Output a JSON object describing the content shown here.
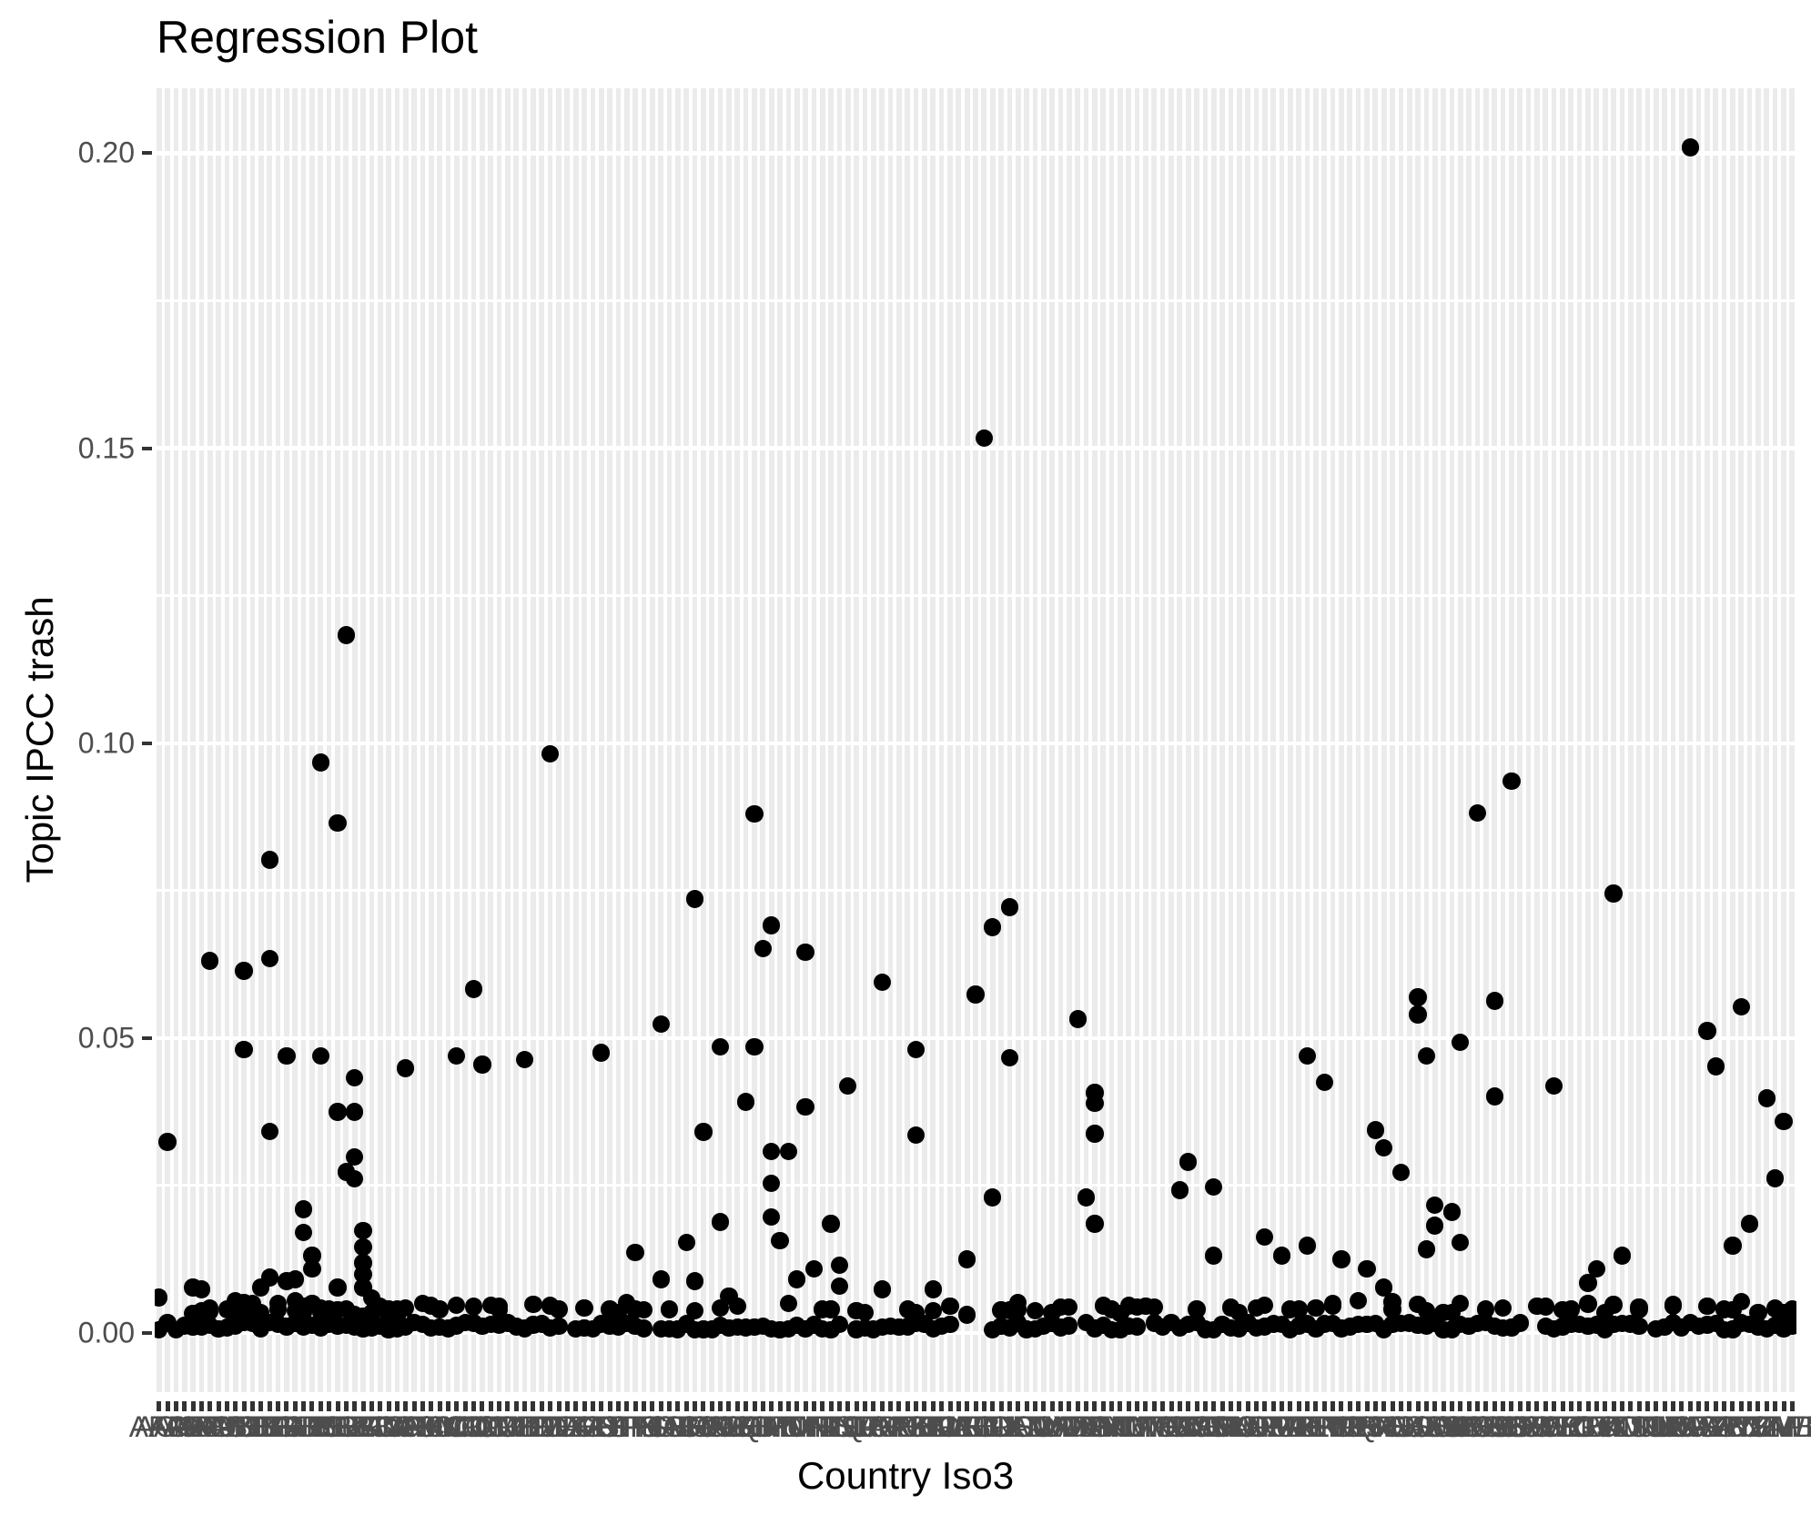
{
  "title": "Regression Plot",
  "colors": {
    "background": "#ffffff",
    "stripe": "#ebebeb",
    "grid": "#ffffff",
    "point": "#000000",
    "tick_text": "#4d4d4d",
    "tick_mark": "#333333",
    "title_text": "#000000"
  },
  "chart_data": {
    "type": "scatter",
    "title": "Regression Plot",
    "xlabel": "Country Iso3",
    "ylabel": "Topic IPCC trash",
    "ylim": [
      -0.0105,
      0.211
    ],
    "y_major_ticks": [
      "0.00",
      "0.05",
      "0.10",
      "0.15",
      "0.20"
    ],
    "y_major_values": [
      0.0,
      0.05,
      0.1,
      0.15,
      0.2
    ],
    "y_minor_values": [
      0.025,
      0.075,
      0.125,
      0.175
    ],
    "grid": "vertical category stripes + white horizontal gridlines",
    "legend": "none",
    "categories": [
      "AFG",
      "AGO",
      "ALB",
      "AND",
      "ARE",
      "ARG",
      "ARM",
      "ATG",
      "AUS",
      "AUT",
      "AZE",
      "BDI",
      "BEL",
      "BEN",
      "BFA",
      "BGD",
      "BGR",
      "BHR",
      "BHS",
      "BIH",
      "BLR",
      "BLZ",
      "BOL",
      "BRA",
      "BRB",
      "BRN",
      "BTN",
      "BWA",
      "CAF",
      "CAN",
      "CHE",
      "CHL",
      "CHN",
      "CIV",
      "CMR",
      "COD",
      "COG",
      "COL",
      "COM",
      "CPV",
      "CRI",
      "CUB",
      "CYP",
      "CZE",
      "DEU",
      "DJI",
      "DMA",
      "DNK",
      "DOM",
      "DZA",
      "ECU",
      "EGY",
      "ERI",
      "ESP",
      "EST",
      "ETH",
      "FIN",
      "FJI",
      "FRA",
      "FSM",
      "GAB",
      "GBR",
      "GEO",
      "GHA",
      "GIN",
      "GMB",
      "GNB",
      "GNQ",
      "GRC",
      "GRD",
      "GTM",
      "GUY",
      "HND",
      "HRV",
      "HTI",
      "HUN",
      "IDN",
      "IND",
      "IRL",
      "IRN",
      "IRQ",
      "ISL",
      "ISR",
      "ITA",
      "JAM",
      "JOR",
      "JPN",
      "KAZ",
      "KEN",
      "KGZ",
      "KHM",
      "KIR",
      "KNA",
      "KOR",
      "KWT",
      "LAO",
      "LBN",
      "LBR",
      "LBY",
      "LCA",
      "LIE",
      "LKA",
      "LSO",
      "LTU",
      "LUX",
      "LVA",
      "MAR",
      "MDA",
      "MDG",
      "MDV",
      "MEX",
      "MHL",
      "MKD",
      "MLI",
      "MLT",
      "MMR",
      "MNE",
      "MNG",
      "MOZ",
      "MRT",
      "MUS",
      "MWI",
      "MYS",
      "NAM",
      "NER",
      "NGA",
      "NIC",
      "NLD",
      "NOR",
      "NPL",
      "NRU",
      "NZL",
      "OMN",
      "PAK",
      "PAN",
      "PER",
      "PHL",
      "PLW",
      "PNG",
      "POL",
      "PRK",
      "PRT",
      "PRY",
      "PSE",
      "QAT",
      "ROU",
      "RUS",
      "RWA",
      "SAU",
      "SDN",
      "SEN",
      "SGP",
      "SLB",
      "SLE",
      "SLV",
      "SMR",
      "SOM",
      "SRB",
      "SSD",
      "STP",
      "SUR",
      "SVK",
      "SVN",
      "SWE",
      "SWZ",
      "SYC",
      "SYR",
      "TCD",
      "TGO",
      "THA",
      "TJK",
      "TKM",
      "TLS",
      "TON",
      "TTO",
      "TUN",
      "TUR",
      "TUV",
      "TZA",
      "UGA",
      "UKR",
      "URY",
      "USA",
      "UZB",
      "VCT",
      "VEN",
      "VNM",
      "VUT",
      "WSM",
      "YEM",
      "ZAF",
      "ZMB",
      "ZWE"
    ],
    "points": [
      [
        180,
        0.201
      ],
      [
        97,
        0.1517
      ],
      [
        22,
        0.1183
      ],
      [
        46,
        0.0982
      ],
      [
        19,
        0.0967
      ],
      [
        159,
        0.0936
      ],
      [
        155,
        0.0882
      ],
      [
        70,
        0.088
      ],
      [
        21,
        0.0865
      ],
      [
        13,
        0.0802
      ],
      [
        171,
        0.0745
      ],
      [
        63,
        0.0736
      ],
      [
        100,
        0.0722
      ],
      [
        72,
        0.0691
      ],
      [
        98,
        0.0688
      ],
      [
        71,
        0.0652
      ],
      [
        76,
        0.0646
      ],
      [
        13,
        0.0635
      ],
      [
        6,
        0.0631
      ],
      [
        10,
        0.0614
      ],
      [
        85,
        0.0595
      ],
      [
        37,
        0.0583
      ],
      [
        96,
        0.0574
      ],
      [
        148,
        0.0569
      ],
      [
        157,
        0.0563
      ],
      [
        186,
        0.0553
      ],
      [
        148,
        0.054
      ],
      [
        108,
        0.0532
      ],
      [
        59,
        0.0524
      ],
      [
        182,
        0.0512
      ],
      [
        153,
        0.0493
      ],
      [
        66,
        0.0485
      ],
      [
        70,
        0.0485
      ],
      [
        89,
        0.048
      ],
      [
        10,
        0.048
      ],
      [
        135,
        0.047
      ],
      [
        149,
        0.047
      ],
      [
        52,
        0.0475
      ],
      [
        15,
        0.047
      ],
      [
        19,
        0.047
      ],
      [
        35,
        0.047
      ],
      [
        100,
        0.0467
      ],
      [
        43,
        0.0464
      ],
      [
        38,
        0.0455
      ],
      [
        183,
        0.0452
      ],
      [
        29,
        0.0449
      ],
      [
        23,
        0.0433
      ],
      [
        137,
        0.0425
      ],
      [
        81,
        0.0419
      ],
      [
        164,
        0.0419
      ],
      [
        110,
        0.0407
      ],
      [
        157,
        0.0401
      ],
      [
        189,
        0.0398
      ],
      [
        69,
        0.0392
      ],
      [
        110,
        0.0389
      ],
      [
        76,
        0.0383
      ],
      [
        21,
        0.0375
      ],
      [
        23,
        0.0375
      ],
      [
        191,
        0.0359
      ],
      [
        143,
        0.0344
      ],
      [
        13,
        0.0342
      ],
      [
        64,
        0.0341
      ],
      [
        110,
        0.0338
      ],
      [
        89,
        0.0335
      ],
      [
        1,
        0.0324
      ],
      [
        144,
        0.0314
      ],
      [
        72,
        0.0308
      ],
      [
        74,
        0.0308
      ],
      [
        23,
        0.0299
      ],
      [
        121,
        0.029
      ],
      [
        22,
        0.0273
      ],
      [
        146,
        0.0272
      ],
      [
        190,
        0.0262
      ],
      [
        23,
        0.0261
      ],
      [
        72,
        0.0254
      ],
      [
        124,
        0.0248
      ],
      [
        120,
        0.0242
      ],
      [
        98,
        0.023
      ],
      [
        109,
        0.023
      ],
      [
        150,
        0.0217
      ],
      [
        17,
        0.021
      ],
      [
        152,
        0.0205
      ],
      [
        72,
        0.0197
      ],
      [
        66,
        0.0188
      ],
      [
        79,
        0.0185
      ],
      [
        110,
        0.0185
      ],
      [
        187,
        0.0185
      ],
      [
        150,
        0.0182
      ],
      [
        24,
        0.0174
      ],
      [
        17,
        0.017
      ],
      [
        130,
        0.0163
      ],
      [
        73,
        0.0157
      ],
      [
        62,
        0.0154
      ],
      [
        153,
        0.0154
      ],
      [
        135,
        0.0148
      ],
      [
        185,
        0.0148
      ],
      [
        24,
        0.0146
      ],
      [
        149,
        0.0142
      ],
      [
        56,
        0.0137
      ],
      [
        18,
        0.0131
      ],
      [
        124,
        0.0131
      ],
      [
        132,
        0.0131
      ],
      [
        172,
        0.0131
      ],
      [
        95,
        0.0125
      ],
      [
        139,
        0.0125
      ],
      [
        24,
        0.0119
      ],
      [
        80,
        0.0115
      ],
      [
        18,
        0.0109
      ],
      [
        77,
        0.0109
      ],
      [
        142,
        0.0109
      ],
      [
        169,
        0.0109
      ],
      [
        24,
        0.0099
      ],
      [
        13,
        0.0094
      ],
      [
        16,
        0.0091
      ],
      [
        59,
        0.0091
      ],
      [
        75,
        0.0091
      ],
      [
        15,
        0.0088
      ],
      [
        63,
        0.0088
      ],
      [
        168,
        0.0085
      ],
      [
        80,
        0.0079
      ],
      [
        24,
        0.0077
      ],
      [
        21,
        0.0077
      ],
      [
        4,
        0.0077
      ],
      [
        12,
        0.0077
      ],
      [
        144,
        0.0077
      ],
      [
        5,
        0.0074
      ],
      [
        85,
        0.0074
      ],
      [
        91,
        0.0074
      ],
      [
        67,
        0.0062
      ],
      [
        0,
        0.006
      ],
      [
        25,
        0.0059
      ],
      [
        141,
        0.0055
      ],
      [
        9,
        0.0055
      ],
      [
        14,
        0.005
      ],
      [
        148,
        0.0049
      ],
      [
        26,
        0.0045
      ],
      [
        89,
        0.0034
      ],
      [
        95,
        0.0031
      ],
      [
        8,
        0.004
      ],
      [
        11,
        0.004
      ],
      [
        20,
        0.004
      ],
      [
        28,
        0.004
      ],
      [
        31,
        0.005
      ],
      [
        33,
        0.004
      ],
      [
        40,
        0.0045
      ],
      [
        47,
        0.004
      ],
      [
        54,
        0.0035
      ],
      [
        60,
        0.004
      ],
      [
        68,
        0.0045
      ],
      [
        74,
        0.005
      ],
      [
        78,
        0.004
      ],
      [
        83,
        0.0035
      ],
      [
        88,
        0.004
      ],
      [
        93,
        0.0045
      ],
      [
        101,
        0.004
      ],
      [
        105,
        0.0035
      ],
      [
        112,
        0.004
      ],
      [
        116,
        0.0045
      ],
      [
        122,
        0.004
      ],
      [
        127,
        0.0035
      ],
      [
        133,
        0.004
      ],
      [
        138,
        0.0045
      ],
      [
        145,
        0.004
      ],
      [
        151,
        0.0035
      ],
      [
        156,
        0.004
      ],
      [
        162,
        0.0045
      ],
      [
        166,
        0.004
      ],
      [
        170,
        0.0035
      ],
      [
        174,
        0.004
      ],
      [
        178,
        0.0045
      ],
      [
        184,
        0.004
      ],
      [
        188,
        0.0035
      ],
      [
        192,
        0.004
      ]
    ],
    "baseline_segments": [
      [
        0,
        47
      ],
      [
        49,
        57
      ],
      [
        59,
        80
      ],
      [
        82,
        93
      ],
      [
        98,
        107
      ],
      [
        109,
        115
      ],
      [
        117,
        160
      ],
      [
        163,
        174
      ],
      [
        176,
        192
      ]
    ],
    "baseline_value_range": [
      0.0005,
      0.0018
    ]
  }
}
